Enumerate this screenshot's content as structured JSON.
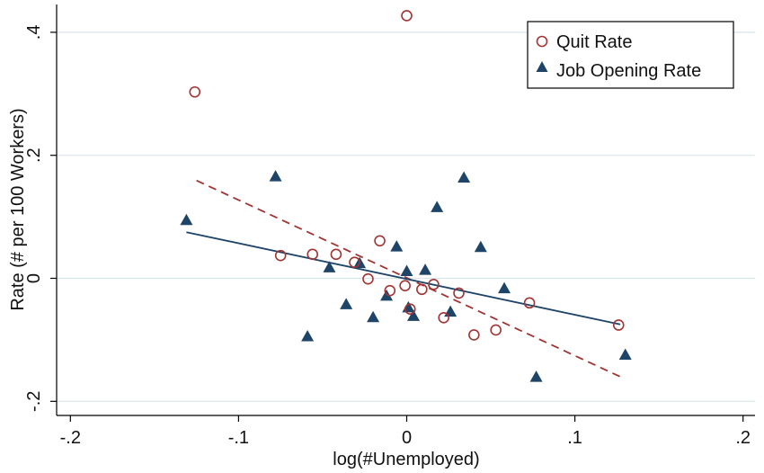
{
  "chart_data": {
    "type": "scatter",
    "xlabel": "log(#Unemployed)",
    "ylabel": "Rate (# per 100 Workers)",
    "xlim": [
      -0.205,
      0.205
    ],
    "ylim": [
      -0.225,
      0.445
    ],
    "x_ticks": [
      -0.2,
      -0.1,
      0,
      0.1,
      0.2
    ],
    "x_tick_labels": [
      "-.2",
      "-.1",
      "0",
      ".1",
      ".2"
    ],
    "y_ticks": [
      -0.2,
      0,
      0.2,
      0.4
    ],
    "y_tick_labels": [
      "-.2",
      "0",
      ".2",
      ".4"
    ],
    "grid": "horizontal",
    "legend_position": "top-right",
    "colors": {
      "quit": "#a23434",
      "job": "#1e4468",
      "grid": "#d9e6ec"
    },
    "series": [
      {
        "name": "Quit Rate",
        "marker": "hollow-circle",
        "points": [
          [
            0.0,
            0.427
          ],
          [
            -0.126,
            0.303
          ],
          [
            -0.075,
            0.037
          ],
          [
            -0.056,
            0.039
          ],
          [
            -0.042,
            0.039
          ],
          [
            -0.031,
            0.026
          ],
          [
            -0.016,
            0.061
          ],
          [
            -0.023,
            -0.001
          ],
          [
            -0.01,
            -0.02
          ],
          [
            -0.001,
            -0.012
          ],
          [
            0.002,
            -0.05
          ],
          [
            0.009,
            -0.018
          ],
          [
            0.016,
            -0.01
          ],
          [
            0.022,
            -0.064
          ],
          [
            0.031,
            -0.024
          ],
          [
            0.04,
            -0.092
          ],
          [
            0.053,
            -0.084
          ],
          [
            0.073,
            -0.04
          ],
          [
            0.126,
            -0.076
          ]
        ],
        "fit": [
          [
            -0.125,
            0.159
          ],
          [
            0.127,
            -0.16
          ]
        ]
      },
      {
        "name": "Job Opening Rate",
        "marker": "filled-triangle",
        "points": [
          [
            -0.131,
            0.094
          ],
          [
            -0.078,
            0.165
          ],
          [
            -0.059,
            -0.095
          ],
          [
            -0.046,
            0.017
          ],
          [
            -0.036,
            -0.043
          ],
          [
            -0.028,
            0.024
          ],
          [
            -0.02,
            -0.064
          ],
          [
            -0.012,
            -0.029
          ],
          [
            -0.006,
            0.051
          ],
          [
            0.0,
            0.011
          ],
          [
            0.001,
            -0.048
          ],
          [
            0.004,
            -0.062
          ],
          [
            0.011,
            0.013
          ],
          [
            0.018,
            0.115
          ],
          [
            0.026,
            -0.055
          ],
          [
            0.034,
            0.163
          ],
          [
            0.044,
            0.05
          ],
          [
            0.058,
            -0.017
          ],
          [
            0.077,
            -0.161
          ],
          [
            0.13,
            -0.125
          ]
        ],
        "fit": [
          [
            -0.131,
            0.075
          ],
          [
            0.127,
            -0.075
          ]
        ]
      }
    ]
  }
}
